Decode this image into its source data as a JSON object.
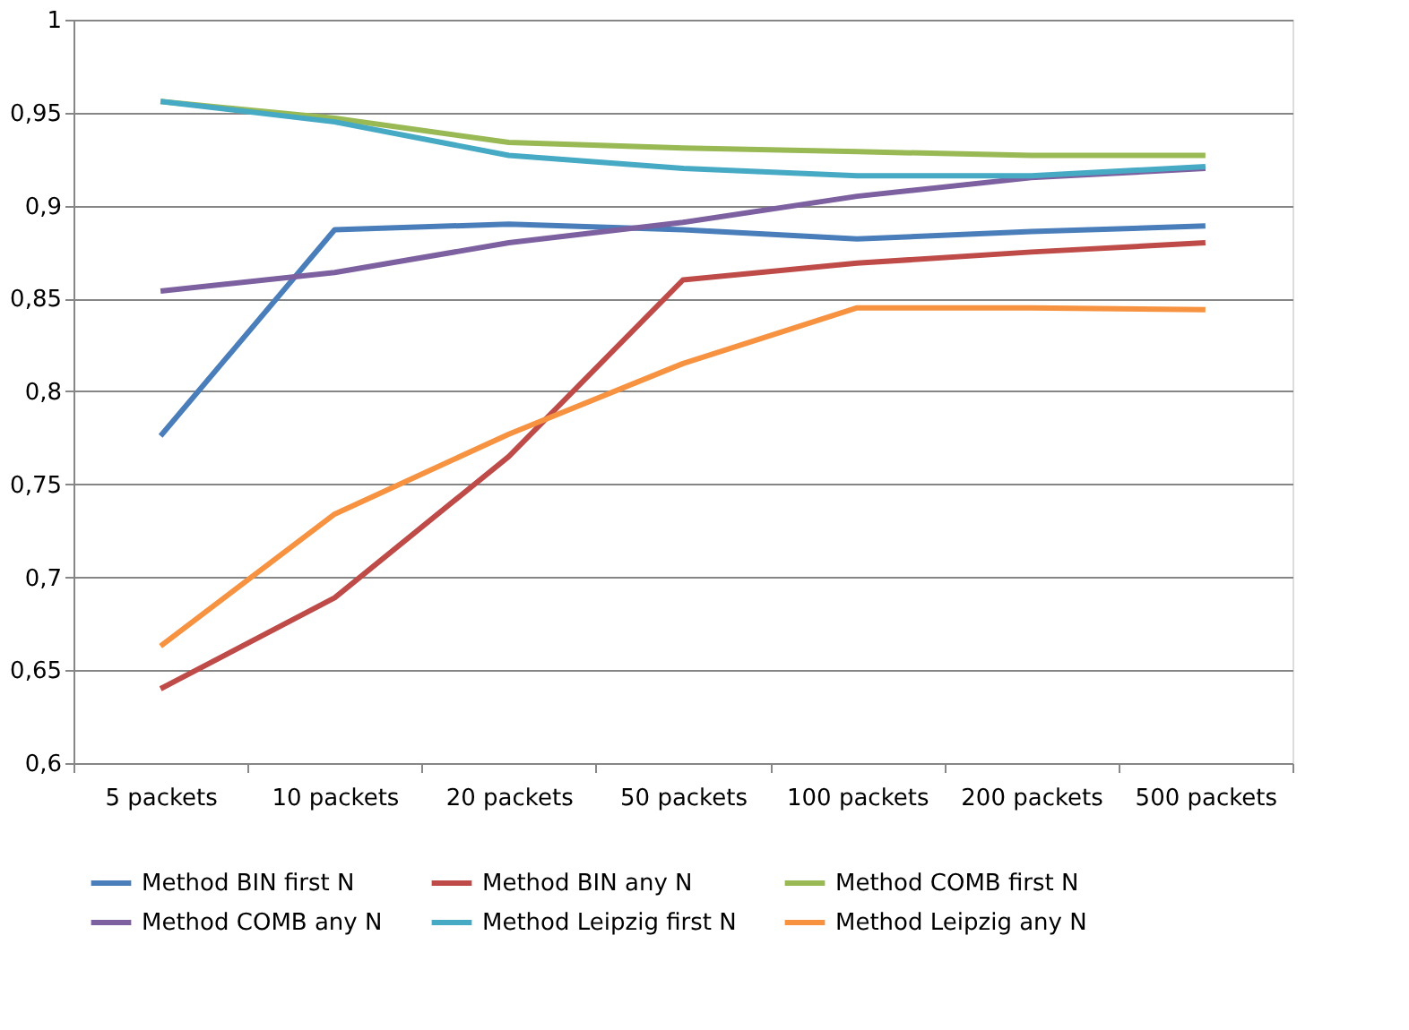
{
  "chart_data": {
    "type": "line",
    "categories": [
      "5 packets",
      "10 packets",
      "20 packets",
      "50 packets",
      "100 packets",
      "200 packets",
      "500 packets"
    ],
    "series": [
      {
        "name": "Method BIN first N",
        "color": "#4a7ebb",
        "values": [
          0.776,
          0.887,
          0.89,
          0.887,
          0.882,
          0.886,
          0.889
        ]
      },
      {
        "name": "Method BIN any N",
        "color": "#be4b48",
        "values": [
          0.64,
          0.689,
          0.765,
          0.86,
          0.869,
          0.875,
          0.88
        ]
      },
      {
        "name": "Method COMB first N",
        "color": "#98b954",
        "values": [
          0.956,
          0.947,
          0.934,
          0.931,
          0.929,
          0.927,
          0.927
        ]
      },
      {
        "name": "Method COMB any N",
        "color": "#7d60a0",
        "values": [
          0.854,
          0.864,
          0.88,
          0.891,
          0.905,
          0.915,
          0.92
        ]
      },
      {
        "name": "Method Leipzig first N",
        "color": "#46aac5",
        "values": [
          0.956,
          0.945,
          0.927,
          0.92,
          0.916,
          0.916,
          0.921
        ]
      },
      {
        "name": "Method Leipzig any N",
        "color": "#f69240",
        "values": [
          0.663,
          0.734,
          0.777,
          0.815,
          0.845,
          0.845,
          0.844
        ]
      }
    ],
    "ylim": [
      0.6,
      1
    ],
    "yticks": [
      {
        "value": 0.6,
        "label": "0,6"
      },
      {
        "value": 0.65,
        "label": "0,65"
      },
      {
        "value": 0.7,
        "label": "0,7"
      },
      {
        "value": 0.75,
        "label": "0,75"
      },
      {
        "value": 0.8,
        "label": "0,8"
      },
      {
        "value": 0.85,
        "label": "0,85"
      },
      {
        "value": 0.9,
        "label": "0,9"
      },
      {
        "value": 0.95,
        "label": "0,95"
      },
      {
        "value": 1,
        "label": "1"
      }
    ],
    "grid": "y",
    "legend": "bottom",
    "marker": "none",
    "line_style": "solid"
  }
}
